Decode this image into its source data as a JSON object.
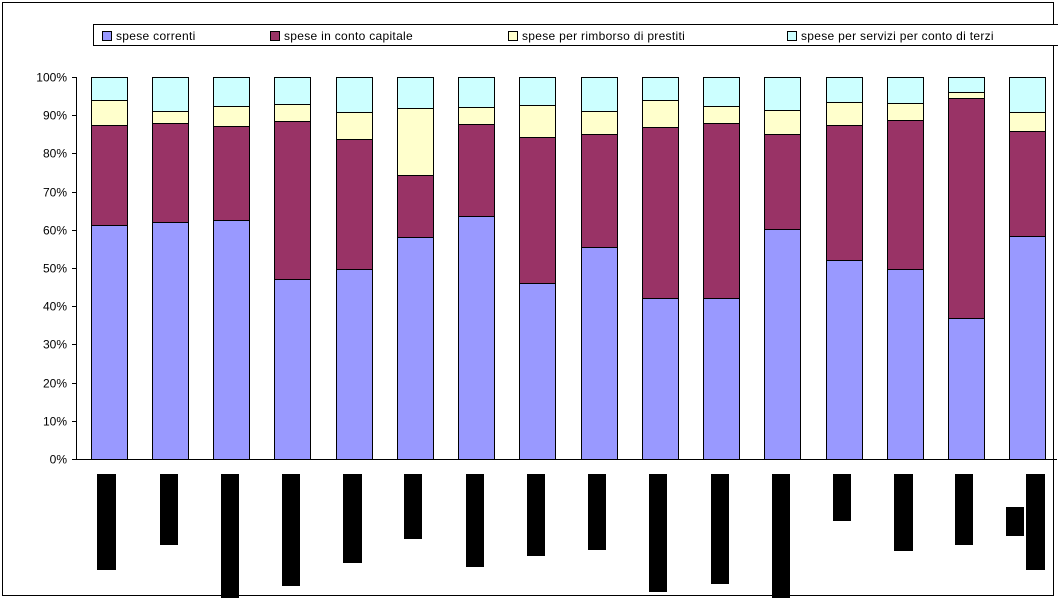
{
  "chart_data": {
    "type": "bar",
    "stacked": true,
    "percent": true,
    "categories": [
      "",
      "",
      "",
      "",
      "",
      "",
      "",
      "",
      "",
      "",
      "",
      "",
      "",
      "",
      "",
      ""
    ],
    "ylim": [
      0,
      100
    ],
    "yticks": [
      "0%",
      "10%",
      "20%",
      "30%",
      "40%",
      "50%",
      "60%",
      "70%",
      "80%",
      "90%",
      "100%"
    ],
    "legend_position": "top",
    "grid": false,
    "series": [
      {
        "name": "spese correnti",
        "color": "#9999FF",
        "values": [
          61.2,
          62.0,
          62.5,
          47.2,
          49.8,
          58.0,
          63.7,
          46.2,
          55.6,
          42.2,
          42.2,
          60.1,
          52.0,
          49.8,
          37.0,
          58.4
        ]
      },
      {
        "name": "spese in conto capitale",
        "color": "#993366",
        "values": [
          26.2,
          26.0,
          24.8,
          41.4,
          33.9,
          16.4,
          24.1,
          38.0,
          29.5,
          44.6,
          45.7,
          25.1,
          35.4,
          38.9,
          57.5,
          27.5
        ]
      },
      {
        "name": "spese per rimborso di prestiti",
        "color": "#FFFFCC",
        "values": [
          6.6,
          3.2,
          5.0,
          4.4,
          7.2,
          17.5,
          4.4,
          8.4,
          6.1,
          7.2,
          4.4,
          6.1,
          6.1,
          4.4,
          1.6,
          5.0
        ]
      },
      {
        "name": "spese per servizi per conto di terzi",
        "color": "#CCFFFF",
        "values": [
          6.0,
          8.8,
          7.7,
          7.0,
          9.1,
          8.1,
          7.8,
          7.4,
          8.8,
          6.0,
          7.7,
          8.7,
          6.5,
          6.9,
          3.9,
          9.1
        ]
      }
    ]
  }
}
